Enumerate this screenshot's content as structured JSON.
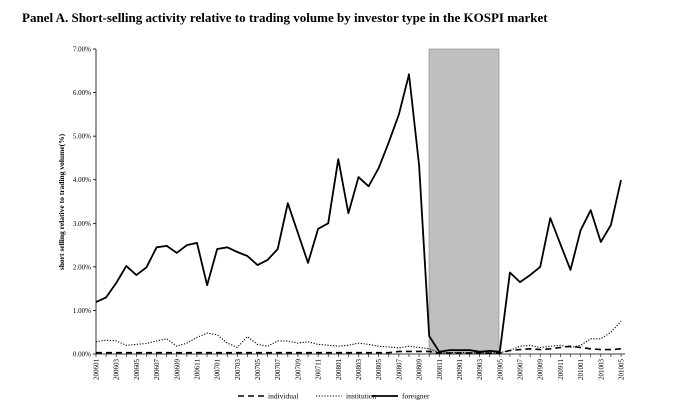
{
  "chart_data": {
    "type": "line",
    "title": "Panel A. Short-selling activity relative to trading volume by investor type in the KOSPI market",
    "y_label": "short selling relative to trading volume(%)",
    "categories": [
      "200601",
      null,
      "200603",
      null,
      "200605",
      null,
      "200607",
      null,
      "200609",
      null,
      "200611",
      null,
      "200701",
      null,
      "200703",
      null,
      "200705",
      null,
      "200707",
      null,
      "200709",
      null,
      "200711",
      null,
      "200801",
      null,
      "200803",
      null,
      "200805",
      null,
      "200807",
      null,
      "200809",
      null,
      "200811",
      null,
      "200901",
      null,
      "200903",
      null,
      "200905",
      null,
      "200907",
      null,
      "200909",
      null,
      "200911",
      null,
      "201001",
      null,
      "201003",
      null,
      "201005"
    ],
    "series": [
      {
        "name": "individual",
        "color": "#000000",
        "dash": "6,4",
        "width": 1.6,
        "values": [
          0.03,
          0.03,
          0.03,
          0.03,
          0.03,
          0.03,
          0.03,
          0.03,
          0.03,
          0.03,
          0.03,
          0.03,
          0.03,
          0.03,
          0.03,
          0.03,
          0.03,
          0.03,
          0.03,
          0.03,
          0.03,
          0.03,
          0.03,
          0.03,
          0.03,
          0.03,
          0.03,
          0.03,
          0.03,
          0.03,
          0.06,
          0.06,
          0.06,
          0.06,
          0.02,
          0.02,
          0.02,
          0.02,
          0.02,
          0.02,
          0.02,
          0.08,
          0.1,
          0.12,
          0.1,
          0.12,
          0.15,
          0.18,
          0.15,
          0.12,
          0.1,
          0.1,
          0.12
        ]
      },
      {
        "name": "institution",
        "color": "#000000",
        "dash": "1.2,1.6",
        "width": 1.1,
        "values": [
          0.28,
          0.32,
          0.3,
          0.2,
          0.22,
          0.24,
          0.3,
          0.35,
          0.18,
          0.25,
          0.38,
          0.48,
          0.44,
          0.25,
          0.15,
          0.4,
          0.22,
          0.18,
          0.3,
          0.3,
          0.25,
          0.28,
          0.22,
          0.2,
          0.18,
          0.2,
          0.25,
          0.22,
          0.18,
          0.16,
          0.14,
          0.18,
          0.15,
          0.12,
          0.03,
          0.03,
          0.04,
          0.03,
          0.03,
          0.02,
          0.03,
          0.08,
          0.18,
          0.2,
          0.15,
          0.18,
          0.2,
          0.15,
          0.2,
          0.35,
          0.35,
          0.5,
          0.75
        ]
      },
      {
        "name": "foreigner",
        "color": "#000000",
        "dash": "none",
        "width": 1.8,
        "values": [
          1.19,
          1.3,
          1.63,
          2.02,
          1.81,
          1.99,
          2.45,
          2.48,
          2.32,
          2.5,
          2.55,
          1.58,
          2.41,
          2.45,
          2.34,
          2.25,
          2.04,
          2.16,
          2.41,
          3.46,
          2.78,
          2.09,
          2.87,
          3.0,
          4.47,
          3.23,
          4.06,
          3.85,
          4.27,
          4.86,
          5.5,
          6.42,
          4.33,
          0.41,
          0.05,
          0.09,
          0.09,
          0.09,
          0.05,
          0.07,
          0.05,
          1.87,
          1.65,
          1.81,
          2.0,
          3.12,
          2.52,
          1.93,
          2.84,
          3.3,
          2.57,
          2.96,
          3.99
        ]
      }
    ],
    "ylim": [
      0,
      7
    ],
    "yticks": [
      {
        "value": 0,
        "label": "0.00%"
      },
      {
        "value": 1,
        "label": "1.00%"
      },
      {
        "value": 2,
        "label": "2.00%"
      },
      {
        "value": 3,
        "label": "3.00%"
      },
      {
        "value": 4,
        "label": "4.00%"
      },
      {
        "value": 5,
        "label": "5.00%"
      },
      {
        "value": 6,
        "label": "6.00%"
      },
      {
        "value": 7,
        "label": "7.00%"
      }
    ],
    "legend": "bottom"
  }
}
